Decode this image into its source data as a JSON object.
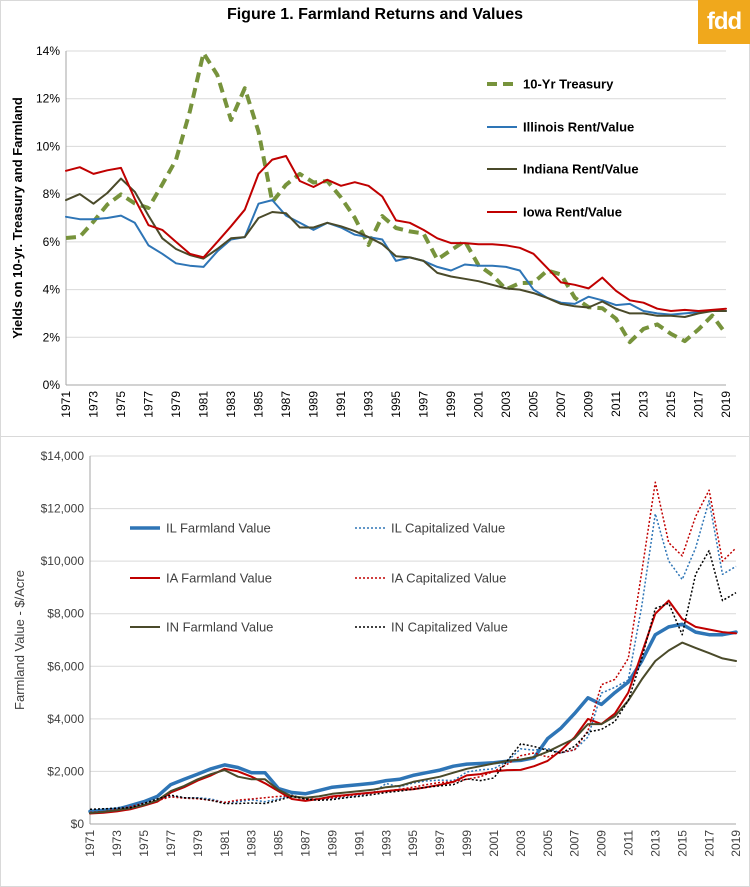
{
  "logo": "fdd",
  "chart_data": [
    {
      "type": "line",
      "title": "Figure 1. Farmland Returns and Values",
      "ylabel": "Yields on 10-yr. Treasury and Farmland",
      "xlabel": "",
      "ylim": [
        0,
        0.14
      ],
      "yticks": [
        0,
        0.02,
        0.04,
        0.06,
        0.08,
        0.1,
        0.12,
        0.14
      ],
      "ytick_labels": [
        "0%",
        "2%",
        "4%",
        "6%",
        "8%",
        "10%",
        "12%",
        "14%"
      ],
      "xlim": [
        1971,
        2019
      ],
      "xtick_labels": [
        "1971",
        "1973",
        "1975",
        "1977",
        "1979",
        "1981",
        "1983",
        "1985",
        "1987",
        "1989",
        "1991",
        "1993",
        "1995",
        "1997",
        "1999",
        "2001",
        "2003",
        "2005",
        "2007",
        "2009",
        "2011",
        "2013",
        "2015",
        "2017",
        "2019"
      ],
      "grid": "horizontal",
      "legend": "right",
      "x": [
        1971,
        1972,
        1973,
        1974,
        1975,
        1976,
        1977,
        1978,
        1979,
        1980,
        1981,
        1982,
        1983,
        1984,
        1985,
        1986,
        1987,
        1988,
        1989,
        1990,
        1991,
        1992,
        1993,
        1994,
        1995,
        1996,
        1997,
        1998,
        1999,
        2000,
        2001,
        2002,
        2003,
        2004,
        2005,
        2006,
        2007,
        2008,
        2009,
        2010,
        2011,
        2012,
        2013,
        2014,
        2015,
        2016,
        2017,
        2018,
        2019
      ],
      "series": [
        {
          "name": "10-Yr  Treasury",
          "color": "#77933c",
          "style": "dashed",
          "values": [
            0.0616,
            0.0621,
            0.0685,
            0.0756,
            0.0799,
            0.0761,
            0.0742,
            0.0841,
            0.0944,
            0.1146,
            0.1391,
            0.13,
            0.1111,
            0.1244,
            0.1062,
            0.0767,
            0.0839,
            0.0885,
            0.0849,
            0.0855,
            0.0786,
            0.0701,
            0.0587,
            0.0708,
            0.0658,
            0.0644,
            0.0635,
            0.0526,
            0.0565,
            0.0603,
            0.0502,
            0.0461,
            0.0401,
            0.0427,
            0.0429,
            0.048,
            0.0463,
            0.0366,
            0.0326,
            0.0322,
            0.0278,
            0.018,
            0.0235,
            0.0254,
            0.0214,
            0.0184,
            0.0233,
            0.0291,
            0.0214
          ]
        },
        {
          "name": "Illinois Rent/Value",
          "color": "#2e75b6",
          "style": "solid",
          "values": [
            0.0705,
            0.0695,
            0.0695,
            0.07,
            0.071,
            0.068,
            0.0585,
            0.055,
            0.051,
            0.05,
            0.0495,
            0.056,
            0.061,
            0.062,
            0.076,
            0.0775,
            0.071,
            0.068,
            0.065,
            0.068,
            0.066,
            0.063,
            0.062,
            0.061,
            0.052,
            0.0535,
            0.052,
            0.0495,
            0.048,
            0.0505,
            0.05,
            0.05,
            0.0495,
            0.048,
            0.04,
            0.0365,
            0.0345,
            0.034,
            0.037,
            0.0355,
            0.0335,
            0.034,
            0.031,
            0.03,
            0.0295,
            0.03,
            0.0305,
            0.031,
            0.031
          ]
        },
        {
          "name": "Indiana Rent/Value",
          "color": "#4a4a2a",
          "style": "solid",
          "values": [
            0.0775,
            0.08,
            0.076,
            0.0805,
            0.0865,
            0.081,
            0.071,
            0.0615,
            0.057,
            0.0545,
            0.053,
            0.057,
            0.0615,
            0.062,
            0.07,
            0.0725,
            0.072,
            0.066,
            0.066,
            0.068,
            0.0665,
            0.0645,
            0.062,
            0.059,
            0.054,
            0.0535,
            0.052,
            0.047,
            0.0455,
            0.0445,
            0.0435,
            0.042,
            0.0405,
            0.04,
            0.0385,
            0.0365,
            0.034,
            0.033,
            0.0325,
            0.035,
            0.032,
            0.03,
            0.03,
            0.029,
            0.029,
            0.0285,
            0.03,
            0.031,
            0.031
          ]
        },
        {
          "name": "Iowa Rent/Value",
          "color": "#c00000",
          "style": "solid",
          "values": [
            0.0898,
            0.0913,
            0.0885,
            0.09,
            0.091,
            0.078,
            0.067,
            0.065,
            0.06,
            0.055,
            0.0535,
            0.06,
            0.0665,
            0.0735,
            0.0885,
            0.0945,
            0.096,
            0.0855,
            0.083,
            0.086,
            0.0835,
            0.085,
            0.0835,
            0.079,
            0.069,
            0.068,
            0.065,
            0.0615,
            0.0595,
            0.0595,
            0.059,
            0.059,
            0.0585,
            0.0575,
            0.055,
            0.049,
            0.043,
            0.042,
            0.0405,
            0.045,
            0.0395,
            0.0355,
            0.0345,
            0.032,
            0.031,
            0.0315,
            0.031,
            0.0315,
            0.032
          ]
        }
      ]
    },
    {
      "type": "line",
      "title": "",
      "ylabel": "Farmland Value - $/Acre",
      "xlabel": "",
      "ylim": [
        0,
        14000
      ],
      "yticks": [
        0,
        2000,
        4000,
        6000,
        8000,
        10000,
        12000,
        14000
      ],
      "ytick_labels": [
        "$0",
        "$2,000",
        "$4,000",
        "$6,000",
        "$8,000",
        "$10,000",
        "$12,000",
        "$14,000"
      ],
      "xlim": [
        1971,
        2019
      ],
      "xtick_labels": [
        "1971",
        "1973",
        "1975",
        "1977",
        "1979",
        "1981",
        "1983",
        "1985",
        "1987",
        "1989",
        "1991",
        "1993",
        "1995",
        "1997",
        "1999",
        "2001",
        "2003",
        "2005",
        "2007",
        "2009",
        "2011",
        "2013",
        "2015",
        "2017",
        "2019"
      ],
      "grid": "horizontal",
      "legend": "top-left",
      "x": [
        1971,
        1972,
        1973,
        1974,
        1975,
        1976,
        1977,
        1978,
        1979,
        1980,
        1981,
        1982,
        1983,
        1984,
        1985,
        1986,
        1987,
        1988,
        1989,
        1990,
        1991,
        1992,
        1993,
        1994,
        1995,
        1996,
        1997,
        1998,
        1999,
        2000,
        2001,
        2002,
        2003,
        2004,
        2005,
        2006,
        2007,
        2008,
        2009,
        2010,
        2011,
        2012,
        2013,
        2014,
        2015,
        2016,
        2017,
        2018,
        2019
      ],
      "series": [
        {
          "name": "IL Farmland Value",
          "color": "#2e75b6",
          "style": "thick",
          "values": [
            480,
            520,
            560,
            700,
            850,
            1050,
            1500,
            1700,
            1900,
            2100,
            2250,
            2150,
            1950,
            1950,
            1350,
            1200,
            1150,
            1270,
            1400,
            1450,
            1500,
            1550,
            1650,
            1700,
            1850,
            1950,
            2050,
            2200,
            2280,
            2300,
            2330,
            2390,
            2420,
            2520,
            3250,
            3650,
            4200,
            4800,
            4550,
            5000,
            5400,
            6200,
            7200,
            7500,
            7600,
            7300,
            7200,
            7200,
            7300
          ]
        },
        {
          "name": "IL Capitalized Value",
          "color": "#2e75b6",
          "style": "dotted",
          "values": [
            510,
            560,
            620,
            690,
            830,
            940,
            1050,
            1000,
            1000,
            950,
            820,
            850,
            920,
            850,
            950,
            1100,
            950,
            940,
            970,
            1000,
            1090,
            1180,
            1540,
            1410,
            1560,
            1640,
            1670,
            1650,
            1980,
            2060,
            2100,
            2390,
            2860,
            2810,
            2870,
            2700,
            2820,
            3310,
            4980,
            5200,
            5480,
            8300,
            11800,
            10000,
            9300,
            10500,
            12300,
            9500,
            9800
          ]
        },
        {
          "name": "IA Farmland Value",
          "color": "#c00000",
          "style": "solid",
          "values": [
            400,
            430,
            480,
            560,
            700,
            850,
            1200,
            1400,
            1650,
            1850,
            2100,
            2000,
            1800,
            1550,
            1250,
            950,
            880,
            950,
            1050,
            1100,
            1150,
            1200,
            1250,
            1300,
            1320,
            1400,
            1490,
            1600,
            1850,
            1900,
            2000,
            2050,
            2060,
            2200,
            2400,
            2800,
            3300,
            4000,
            3800,
            4200,
            5000,
            6500,
            8000,
            8500,
            7800,
            7500,
            7400,
            7300,
            7250
          ]
        },
        {
          "name": "IA Capitalized Value",
          "color": "#c00000",
          "style": "dotted",
          "values": [
            440,
            470,
            560,
            660,
            790,
            890,
            1030,
            980,
            960,
            900,
            820,
            910,
            950,
            1000,
            1050,
            1080,
            950,
            950,
            990,
            1070,
            1130,
            1180,
            1260,
            1320,
            1400,
            1500,
            1580,
            1610,
            1700,
            1800,
            2000,
            2270,
            2600,
            2700,
            2550,
            2720,
            2820,
            3550,
            5300,
            5500,
            6300,
            9600,
            13000,
            10700,
            10200,
            11700,
            12700,
            10000,
            10500
          ]
        },
        {
          "name": "IN Farmland Value",
          "color": "#4a4a2a",
          "style": "solid",
          "values": [
            420,
            460,
            520,
            600,
            720,
            900,
            1250,
            1450,
            1700,
            1900,
            2050,
            1800,
            1700,
            1700,
            1300,
            1050,
            1000,
            1050,
            1150,
            1200,
            1250,
            1300,
            1400,
            1450,
            1600,
            1700,
            1800,
            1950,
            2100,
            2200,
            2300,
            2400,
            2450,
            2550,
            2750,
            3000,
            3250,
            3800,
            3800,
            4100,
            4700,
            5500,
            6200,
            6600,
            6900,
            6700,
            6500,
            6300,
            6200
          ]
        },
        {
          "name": "IN Capitalized Value",
          "color": "#000000",
          "style": "dotted",
          "values": [
            560,
            580,
            600,
            620,
            780,
            950,
            1100,
            1000,
            980,
            900,
            780,
            780,
            800,
            780,
            900,
            1050,
            950,
            900,
            930,
            1000,
            1050,
            1120,
            1200,
            1250,
            1320,
            1400,
            1450,
            1500,
            1720,
            1650,
            1750,
            2400,
            3050,
            2950,
            2800,
            2700,
            2950,
            3500,
            3600,
            3900,
            4700,
            6300,
            8200,
            8400,
            7200,
            9500,
            10400,
            8500,
            8800
          ]
        }
      ]
    }
  ]
}
